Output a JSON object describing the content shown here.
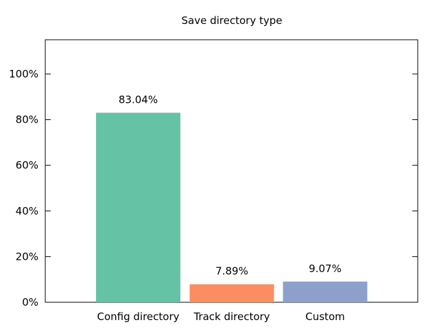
{
  "chart_data": {
    "type": "bar",
    "title": "Save directory type",
    "xlabel": "",
    "ylabel": "",
    "categories": [
      "Config directory",
      "Track directory",
      "Custom"
    ],
    "values": [
      83.04,
      7.89,
      9.07
    ],
    "data_labels": [
      "83.04%",
      "7.89%",
      "9.07%"
    ],
    "colors": [
      "#66c2a5",
      "#fc8d62",
      "#8da0cb"
    ],
    "ylim": [
      0,
      115
    ],
    "yticks": [
      0,
      20,
      40,
      60,
      80,
      100
    ],
    "ytick_labels": [
      "0%",
      "20%",
      "40%",
      "60%",
      "80%",
      "100%"
    ],
    "grid": false,
    "legend": "none"
  }
}
